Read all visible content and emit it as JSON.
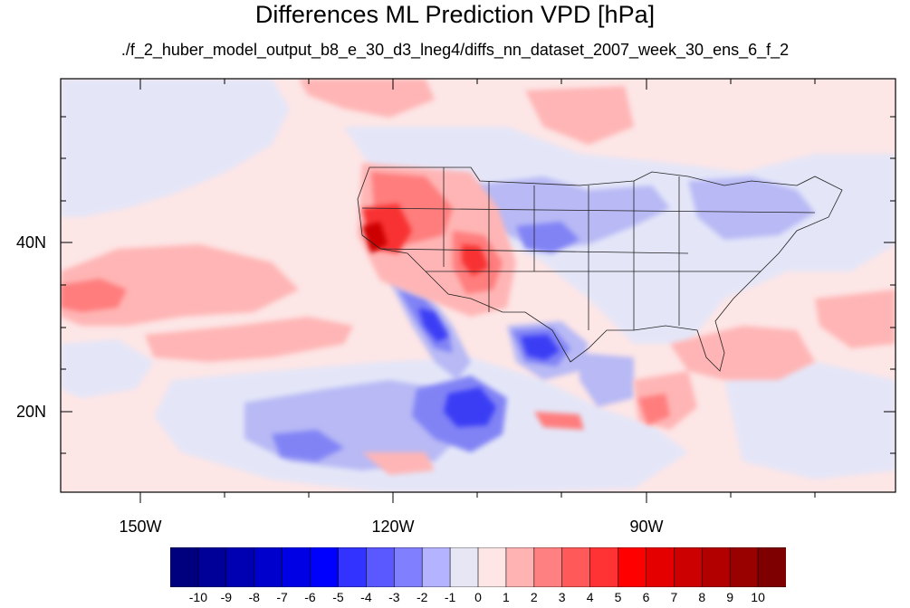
{
  "title": "Differences ML Prediction VPD [hPa]",
  "subtitle": "./f_2_huber_model_output_b8_e_30_d3_lneg4/diffs_nn_dataset_2007_week_30_ens_6_f_2",
  "lat_labels": [
    "40N",
    "20N"
  ],
  "lon_labels": [
    "150W",
    "120W",
    "90W"
  ],
  "colorbar": {
    "labels": [
      "-10",
      "-9",
      "-8",
      "-7",
      "-6",
      "-5",
      "-4",
      "-3",
      "-2",
      "-1",
      "0",
      "1",
      "2",
      "3",
      "4",
      "5",
      "6",
      "7",
      "8",
      "9",
      "10"
    ],
    "colors": [
      "#00007f",
      "#000099",
      "#0000b2",
      "#0000cc",
      "#0000e5",
      "#0000ff",
      "#3333ff",
      "#5959ff",
      "#8080ff",
      "#b3b3ff",
      "#e6e6f5",
      "#ffe6e6",
      "#ffb3b3",
      "#ff8080",
      "#ff5959",
      "#ff3333",
      "#ff0000",
      "#e50000",
      "#cc0000",
      "#b20000",
      "#990000",
      "#7f0000"
    ]
  },
  "colors": {
    "background_positive": "#fde6e6",
    "background_negative": "#e6e8f8"
  }
}
